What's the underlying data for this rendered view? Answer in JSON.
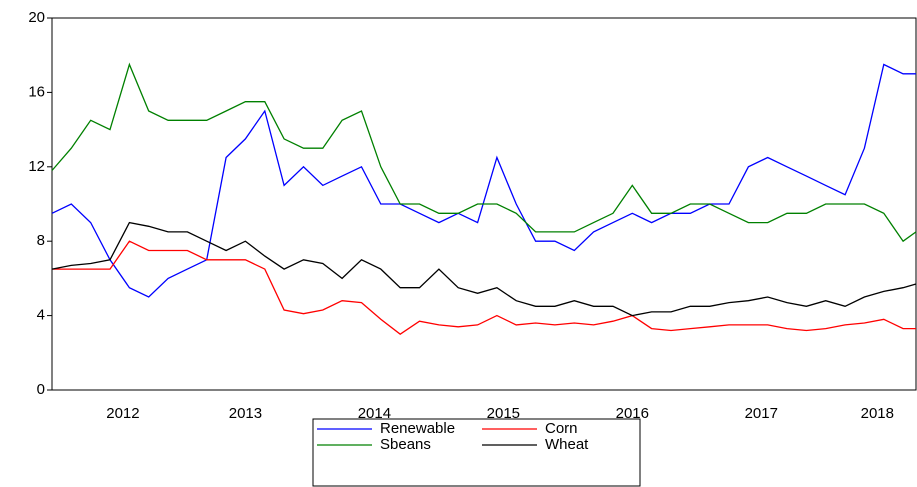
{
  "chart_data": {
    "type": "line",
    "x": [
      2012.0,
      2012.15,
      2012.3,
      2012.45,
      2012.6,
      2012.75,
      2012.9,
      2013.05,
      2013.2,
      2013.35,
      2013.5,
      2013.65,
      2013.8,
      2013.95,
      2014.1,
      2014.25,
      2014.4,
      2014.55,
      2014.7,
      2014.85,
      2015.0,
      2015.15,
      2015.3,
      2015.45,
      2015.6,
      2015.75,
      2015.9,
      2016.05,
      2016.2,
      2016.35,
      2016.5,
      2016.65,
      2016.8,
      2016.95,
      2017.1,
      2017.25,
      2017.4,
      2017.55,
      2017.7,
      2017.85,
      2018.0,
      2018.15,
      2018.3,
      2018.45,
      2018.6,
      2018.7
    ],
    "series": [
      {
        "name": "Renewable",
        "color": "#0000ff",
        "values": [
          9.5,
          10,
          9,
          7,
          5.5,
          5,
          6,
          6.5,
          7,
          12.5,
          13.5,
          15,
          11,
          12,
          11,
          11.5,
          12,
          10,
          10,
          9.5,
          9,
          9.5,
          9,
          12.5,
          10,
          8,
          8,
          7.5,
          8.5,
          9,
          9.5,
          9,
          9.5,
          9.5,
          10,
          10,
          12,
          12.5,
          12,
          11.5,
          11,
          10.5,
          13,
          17.5,
          17,
          17
        ]
      },
      {
        "name": "Corn",
        "color": "#ff0000",
        "values": [
          6.5,
          6.5,
          6.5,
          6.5,
          8,
          7.5,
          7.5,
          7.5,
          7,
          7,
          7,
          6.5,
          4.3,
          4.1,
          4.3,
          4.8,
          4.7,
          3.8,
          3,
          3.7,
          3.5,
          3.4,
          3.5,
          4,
          3.5,
          3.6,
          3.5,
          3.6,
          3.5,
          3.7,
          4,
          3.3,
          3.2,
          3.3,
          3.4,
          3.5,
          3.5,
          3.5,
          3.3,
          3.2,
          3.3,
          3.5,
          3.6,
          3.8,
          3.3,
          3.3
        ]
      },
      {
        "name": "Sbeans",
        "color": "#008000",
        "values": [
          11.8,
          13,
          14.5,
          14,
          17.5,
          15,
          14.5,
          14.5,
          14.5,
          15,
          15.5,
          15.5,
          13.5,
          13,
          13,
          14.5,
          15,
          12,
          10,
          10,
          9.5,
          9.5,
          10,
          10,
          9.5,
          8.5,
          8.5,
          8.5,
          9,
          9.5,
          11,
          9.5,
          9.5,
          10,
          10,
          9.5,
          9,
          9,
          9.5,
          9.5,
          10,
          10,
          10,
          9.5,
          8,
          8.5
        ]
      },
      {
        "name": "Wheat",
        "color": "#000000",
        "values": [
          6.5,
          6.7,
          6.8,
          7,
          9,
          8.8,
          8.5,
          8.5,
          8,
          7.5,
          8,
          7.2,
          6.5,
          7,
          6.8,
          6,
          7,
          6.5,
          5.5,
          5.5,
          6.5,
          5.5,
          5.2,
          5.5,
          4.8,
          4.5,
          4.5,
          4.8,
          4.5,
          4.5,
          4,
          4.2,
          4.2,
          4.5,
          4.5,
          4.7,
          4.8,
          5,
          4.7,
          4.5,
          4.8,
          4.5,
          5,
          5.3,
          5.5,
          5.7
        ]
      }
    ],
    "xlim": [
      2012.0,
      2018.7
    ],
    "xticks": [
      {
        "value": 2012.55,
        "label": "2012"
      },
      {
        "value": 2013.5,
        "label": "2013"
      },
      {
        "value": 2014.5,
        "label": "2014"
      },
      {
        "value": 2015.5,
        "label": "2015"
      },
      {
        "value": 2016.5,
        "label": "2016"
      },
      {
        "value": 2017.5,
        "label": "2017"
      },
      {
        "value": 2018.4,
        "label": "2018"
      }
    ],
    "ylim": [
      0,
      20
    ],
    "yticks": [
      0,
      4,
      8,
      12,
      16,
      20
    ],
    "legend": "bottom"
  }
}
